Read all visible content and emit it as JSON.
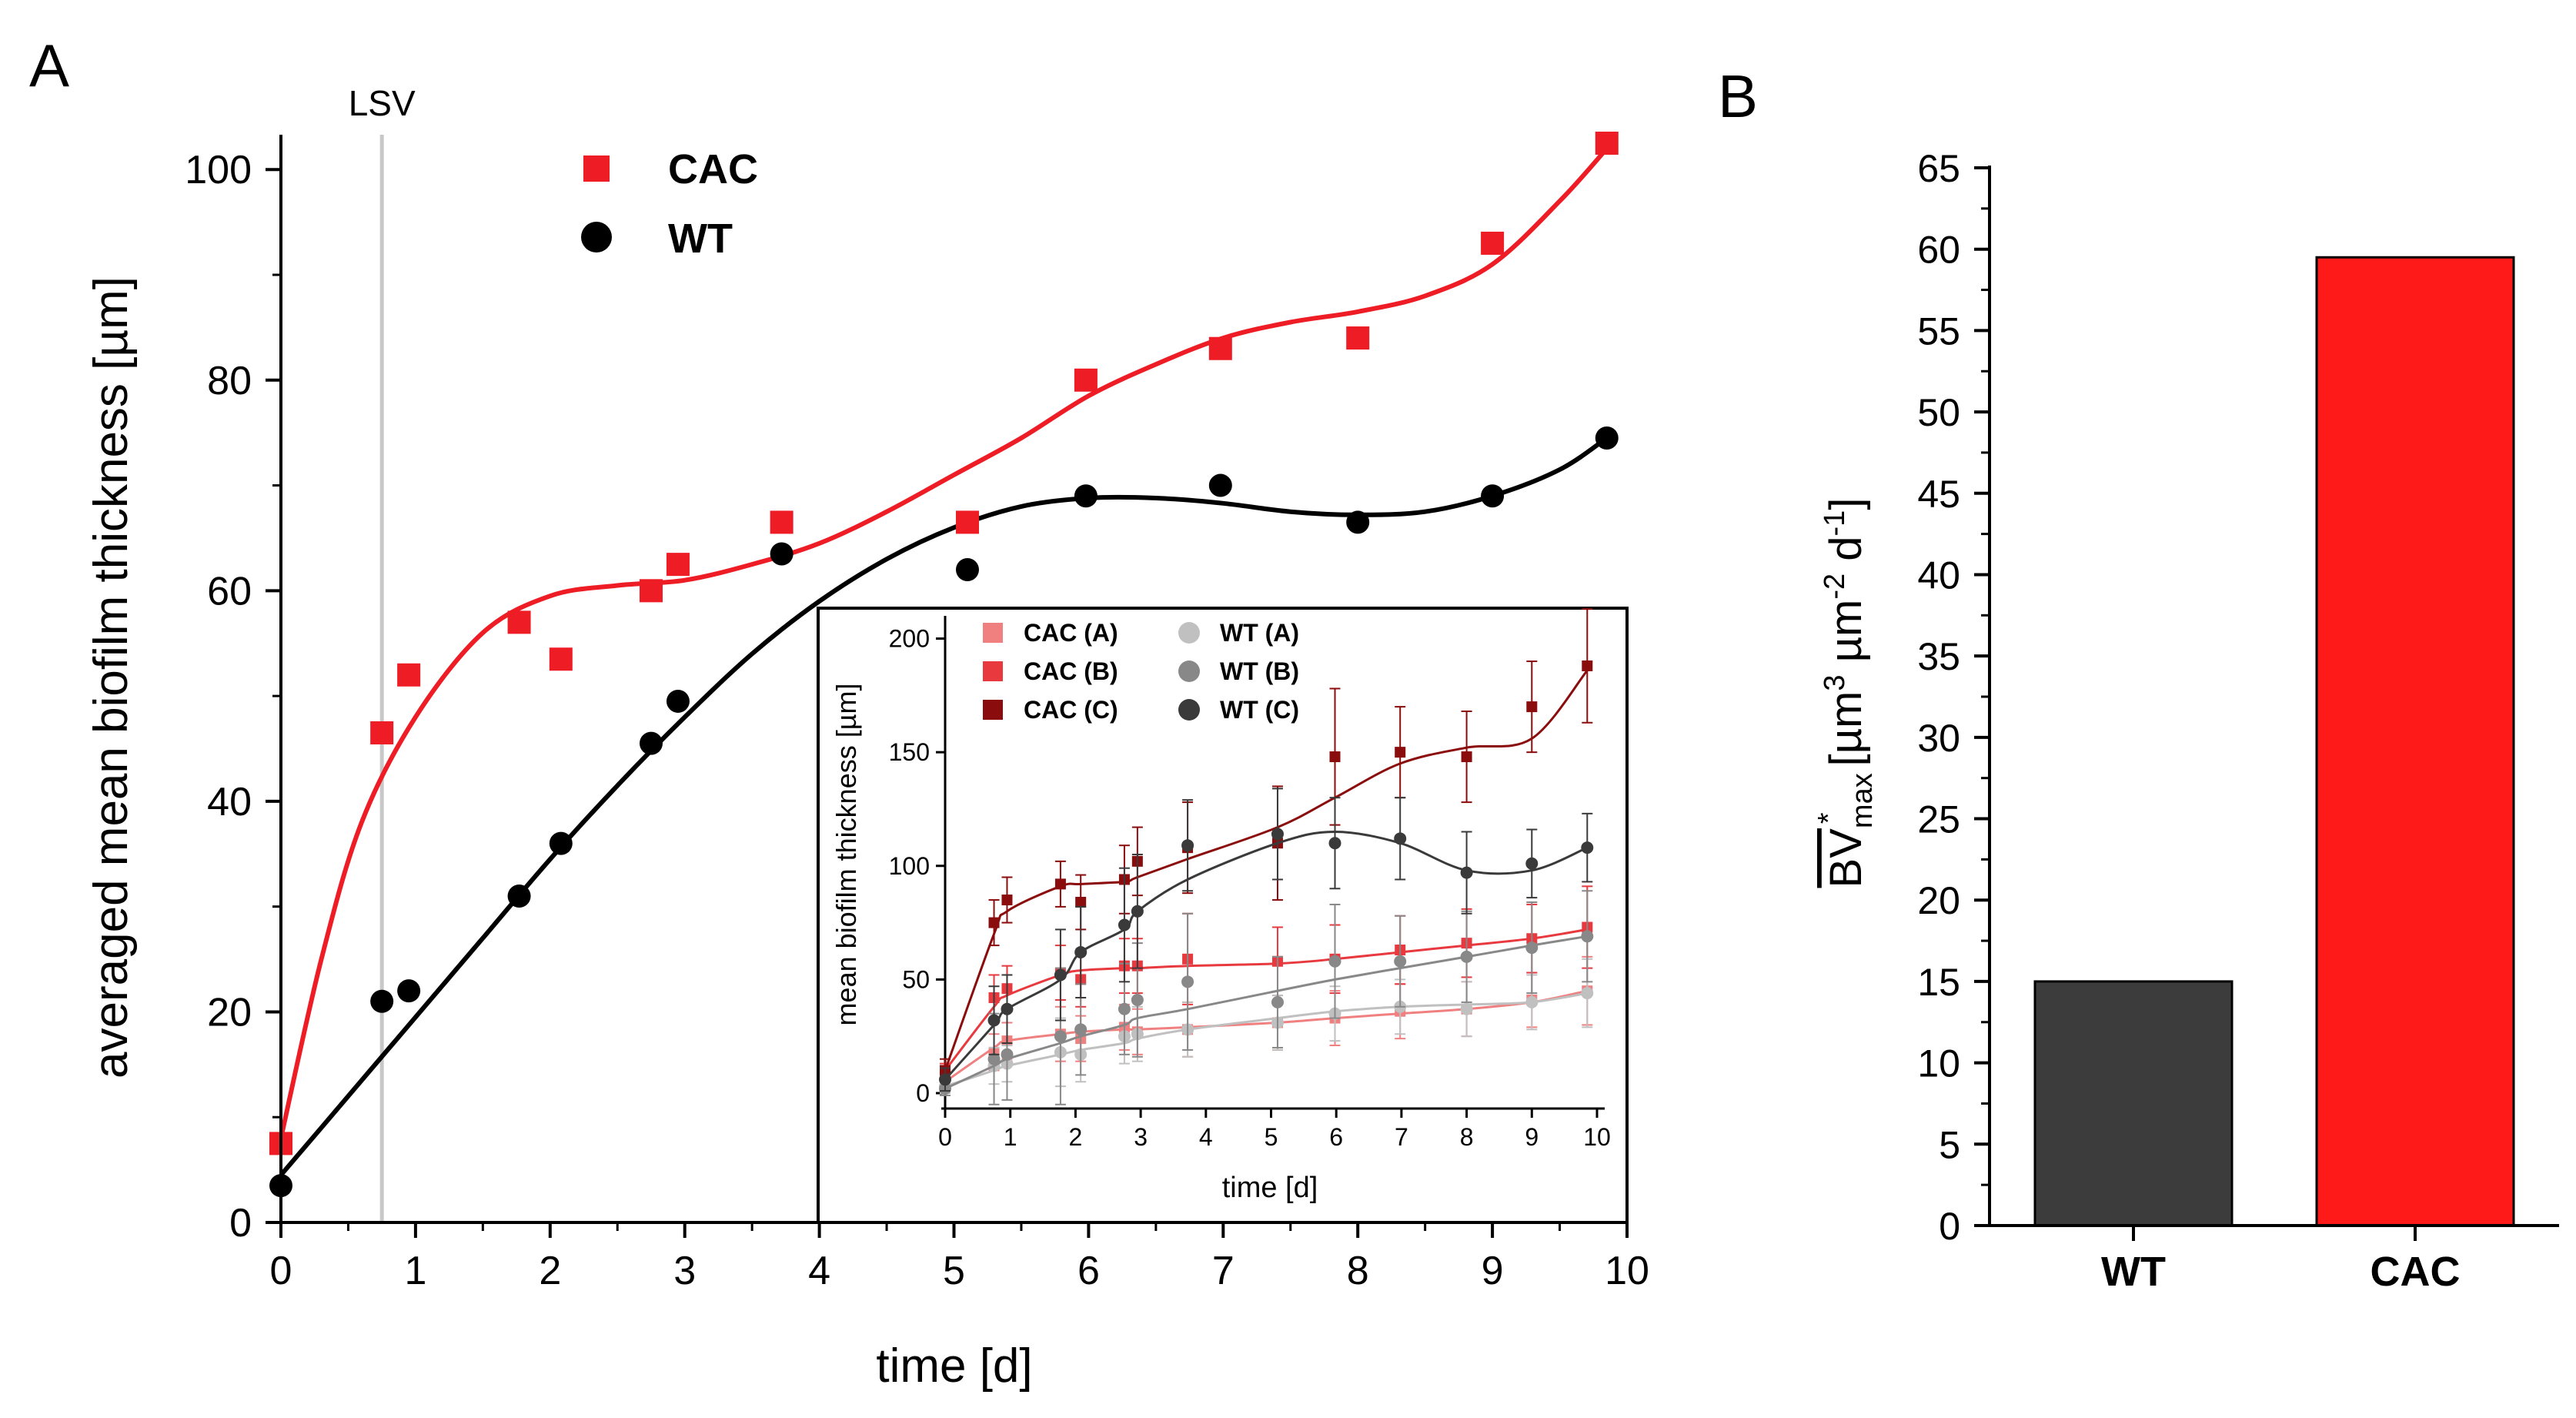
{
  "panels": {
    "a": "A",
    "b": "B"
  },
  "colors": {
    "cac": "#ee1c25",
    "wt": "#000000",
    "bar_wt": "#3c3c3c",
    "bar_cac": "#ff1a1a",
    "cac_a": "#f08080",
    "cac_b": "#e8393f",
    "cac_c": "#8b0c0c",
    "wt_a": "#c0c0c0",
    "wt_b": "#888888",
    "wt_c": "#3a3a3a",
    "lsv": "#c8c8c8"
  },
  "chart_data": [
    {
      "id": "main",
      "type": "scatter",
      "xlabel": "time [d]",
      "ylabel": "averaged mean biofilm thickness [µm]",
      "xlim": [
        0,
        10
      ],
      "ylim": [
        0,
        100
      ],
      "xticks": [
        0,
        1,
        2,
        3,
        4,
        5,
        6,
        7,
        8,
        9,
        10
      ],
      "yticks": [
        0,
        20,
        40,
        60,
        80,
        100
      ],
      "annotation": {
        "label": "LSV",
        "x": 0.75
      },
      "legend_position": "top-left",
      "series": [
        {
          "name": "CAC",
          "marker": "square",
          "x": [
            0,
            0.75,
            0.95,
            1.77,
            2.08,
            2.75,
            2.95,
            3.72,
            5.1,
            5.98,
            6.98,
            8.0,
            9.0,
            9.85
          ],
          "y": [
            7.5,
            46.5,
            52,
            57,
            53.5,
            60,
            62.5,
            66.5,
            66.5,
            80,
            83,
            84,
            93,
            102.5
          ],
          "fit_x": [
            0,
            0.3,
            0.6,
            1.0,
            1.5,
            2.0,
            2.5,
            3.0,
            3.5,
            4.0,
            4.5,
            5.0,
            5.5,
            6.0,
            6.5,
            7.0,
            7.5,
            8.0,
            8.5,
            9.0,
            9.5,
            9.85
          ],
          "fit_y": [
            8,
            25,
            38,
            48,
            56,
            59.5,
            60.5,
            61,
            62.5,
            64.5,
            67.5,
            71,
            74.5,
            78.5,
            81.5,
            84,
            85.5,
            86.5,
            88,
            91,
            97,
            102
          ]
        },
        {
          "name": "WT",
          "marker": "circle",
          "x": [
            0,
            0.75,
            0.95,
            1.77,
            2.08,
            2.75,
            2.95,
            3.72,
            5.1,
            5.98,
            6.98,
            8.0,
            9.0,
            9.85
          ],
          "y": [
            3.5,
            21,
            22,
            31,
            36,
            45.5,
            49.5,
            63.5,
            62,
            69,
            70,
            66.5,
            69,
            74.5
          ],
          "fit_x": [
            0,
            0.5,
            1.0,
            1.5,
            2.0,
            2.5,
            3.0,
            3.5,
            4.0,
            4.5,
            5.0,
            5.5,
            6.0,
            6.5,
            7.0,
            7.5,
            8.0,
            8.5,
            9.0,
            9.5,
            9.85
          ],
          "fit_y": [
            4.5,
            12,
            19.5,
            27,
            34.5,
            41.5,
            48,
            54,
            59,
            63,
            66,
            68,
            68.8,
            68.8,
            68.3,
            67.5,
            67.2,
            67.5,
            69,
            71.5,
            74.5
          ]
        }
      ]
    },
    {
      "id": "inset",
      "type": "scatter",
      "xlabel": "time [d]",
      "ylabel": "mean biofilm thickness [µm]",
      "xlim": [
        0,
        10
      ],
      "ylim": [
        0,
        210
      ],
      "xticks": [
        0,
        1,
        2,
        3,
        4,
        5,
        6,
        7,
        8,
        9,
        10
      ],
      "yticks": [
        0,
        50,
        100,
        150,
        200
      ],
      "legend_position": "top-left",
      "series": [
        {
          "name": "CAC (A)",
          "marker": "square",
          "color_key": "cac_a",
          "x": [
            0,
            0.75,
            0.95,
            1.77,
            2.08,
            2.75,
            2.95,
            3.72,
            5.1,
            5.98,
            6.98,
            8.0,
            9.0,
            9.85
          ],
          "y": [
            5,
            18,
            23,
            26,
            24,
            29,
            27,
            28,
            31,
            33,
            36,
            37,
            41,
            45
          ],
          "err": [
            3,
            8,
            8,
            12,
            10,
            10,
            10,
            12,
            12,
            12,
            12,
            12,
            12,
            15
          ],
          "fit_y": [
            5,
            20,
            23,
            26,
            27,
            28,
            28,
            29,
            31,
            33,
            35,
            37,
            40,
            45
          ]
        },
        {
          "name": "CAC (B)",
          "marker": "square",
          "color_key": "cac_b",
          "x": [
            0,
            0.75,
            0.95,
            1.77,
            2.08,
            2.75,
            2.95,
            3.72,
            5.1,
            5.98,
            6.98,
            8.0,
            9.0,
            9.85
          ],
          "y": [
            10,
            42,
            46,
            53,
            50,
            56,
            56,
            59,
            58,
            59,
            63,
            66,
            68,
            73
          ],
          "err": [
            3,
            10,
            10,
            12,
            12,
            12,
            12,
            20,
            15,
            15,
            15,
            15,
            15,
            18
          ],
          "fit_y": [
            10,
            38,
            43,
            52,
            54,
            55,
            55,
            56,
            57,
            59,
            62,
            65,
            68,
            72
          ]
        },
        {
          "name": "CAC (C)",
          "marker": "square",
          "color_key": "cac_c",
          "x": [
            0,
            0.75,
            0.95,
            1.77,
            2.08,
            2.75,
            2.95,
            3.72,
            5.1,
            5.98,
            6.98,
            8.0,
            9.0,
            9.85
          ],
          "y": [
            10,
            75,
            85,
            92,
            84,
            94,
            102,
            108,
            110,
            148,
            150,
            148,
            170,
            188
          ],
          "err": [
            5,
            10,
            10,
            10,
            12,
            15,
            15,
            20,
            25,
            30,
            20,
            20,
            20,
            25
          ],
          "fit_y": [
            10,
            70,
            80,
            91,
            92,
            93,
            95,
            103,
            117,
            130,
            145,
            152,
            156,
            186
          ]
        },
        {
          "name": "WT (A)",
          "marker": "circle",
          "color_key": "wt_a",
          "x": [
            0,
            0.75,
            0.95,
            1.77,
            2.08,
            2.75,
            2.95,
            3.72,
            5.1,
            5.98,
            6.98,
            8.0,
            9.0,
            9.85
          ],
          "y": [
            3,
            12,
            13,
            18,
            17,
            25,
            26,
            28,
            31,
            35,
            38,
            37,
            40,
            44
          ],
          "err": [
            3,
            8,
            8,
            15,
            12,
            12,
            12,
            12,
            12,
            12,
            12,
            12,
            12,
            15
          ],
          "fit_y": [
            3,
            10,
            12,
            17,
            19,
            22,
            24,
            28,
            33,
            36,
            38,
            39,
            40,
            44
          ]
        },
        {
          "name": "WT (B)",
          "marker": "circle",
          "color_key": "wt_b",
          "x": [
            0,
            0.75,
            0.95,
            1.77,
            2.08,
            2.75,
            2.95,
            3.72,
            5.1,
            5.98,
            6.98,
            8.0,
            9.0,
            9.85
          ],
          "y": [
            2,
            15,
            17,
            25,
            28,
            37,
            41,
            49,
            40,
            58,
            58,
            60,
            64,
            69
          ],
          "err": [
            3,
            20,
            20,
            30,
            20,
            20,
            25,
            30,
            20,
            25,
            20,
            20,
            20,
            20
          ],
          "fit_y": [
            2,
            12,
            15,
            22,
            25,
            30,
            33,
            37,
            45,
            50,
            55,
            60,
            65,
            69
          ]
        },
        {
          "name": "WT (C)",
          "marker": "circle",
          "color_key": "wt_c",
          "x": [
            0,
            0.75,
            0.95,
            1.77,
            2.08,
            2.75,
            2.95,
            3.72,
            5.1,
            5.98,
            6.98,
            8.0,
            9.0,
            9.85
          ],
          "y": [
            6,
            32,
            37,
            52,
            62,
            74,
            80,
            109,
            114,
            110,
            112,
            97,
            101,
            108
          ],
          "err": [
            5,
            15,
            15,
            20,
            20,
            25,
            25,
            20,
            20,
            20,
            18,
            18,
            15,
            15
          ],
          "fit_y": [
            6,
            30,
            37,
            50,
            62,
            72,
            80,
            94,
            110,
            115,
            110,
            98,
            98,
            108
          ]
        }
      ]
    },
    {
      "id": "bars",
      "type": "bar",
      "ylabel_main": "BV",
      "ylabel_sup": "*",
      "ylabel_sub": "max",
      "ylabel_units": "[µm",
      "ylabel_u1": "3",
      "ylabel_mid": " µm",
      "ylabel_u2": "-2",
      "ylabel_mid2": " d",
      "ylabel_u3": "-1",
      "ylabel_end": "]",
      "categories": [
        "WT",
        "CAC"
      ],
      "values": [
        15,
        59.5
      ],
      "ylim": [
        0,
        65
      ],
      "yticks": [
        0,
        5,
        10,
        15,
        20,
        25,
        30,
        35,
        40,
        45,
        50,
        55,
        60,
        65
      ]
    }
  ]
}
